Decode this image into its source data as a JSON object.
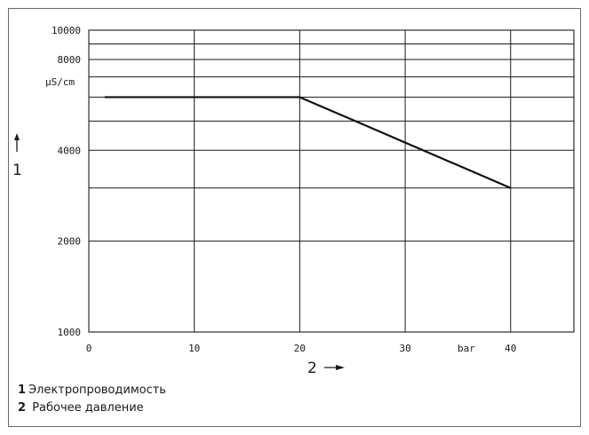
{
  "chart_data": {
    "type": "line",
    "x_axis": {
      "range": [
        0,
        46
      ],
      "ticks": [
        0,
        10,
        20,
        30,
        40
      ],
      "tick_labels": [
        "0",
        "10",
        "20",
        "30",
        "40"
      ],
      "unit": "bar",
      "axis_number": "2"
    },
    "y_axis": {
      "scale": "log",
      "range": [
        1000,
        10000
      ],
      "labeled_ticks": [
        1000,
        2000,
        4000,
        8000,
        10000
      ],
      "tick_labels": [
        "1000",
        "2000",
        "4000",
        "8000",
        "10000"
      ],
      "gridlines": [
        1000,
        2000,
        3000,
        4000,
        5000,
        6000,
        7000,
        8000,
        9000,
        10000
      ],
      "unit": "µS/cm",
      "axis_number": "1"
    },
    "vertical_gridlines": [
      0,
      10,
      20,
      30,
      40
    ],
    "grid": true,
    "series": [
      {
        "x": [
          1.5,
          20,
          40
        ],
        "y": [
          6000,
          6000,
          3000
        ]
      }
    ]
  },
  "legend": {
    "items": [
      {
        "num": "1",
        "text": "Электропроводимость"
      },
      {
        "num": "2",
        "text": "Рабочее давление"
      }
    ]
  }
}
